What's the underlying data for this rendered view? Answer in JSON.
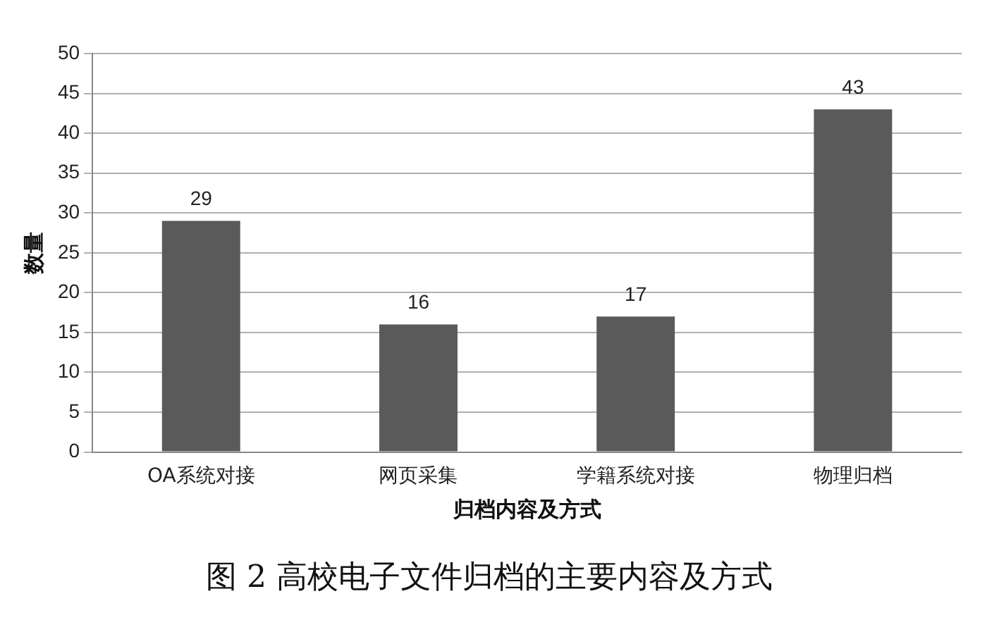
{
  "chart_data": {
    "type": "bar",
    "title": "图 2 高校电子文件归档的主要内容及方式",
    "xlabel": "归档内容及方式",
    "ylabel": "数量",
    "categories": [
      "OA系统对接",
      "网页采集",
      "学籍系统对接",
      "物理归档"
    ],
    "values": [
      29,
      16,
      17,
      43
    ],
    "color": "#5a5a5a",
    "ylim": [
      0,
      50
    ],
    "yticks": [
      0,
      5,
      10,
      15,
      20,
      25,
      30,
      35,
      40,
      45,
      50
    ],
    "grid": "y",
    "data_labels": true
  }
}
